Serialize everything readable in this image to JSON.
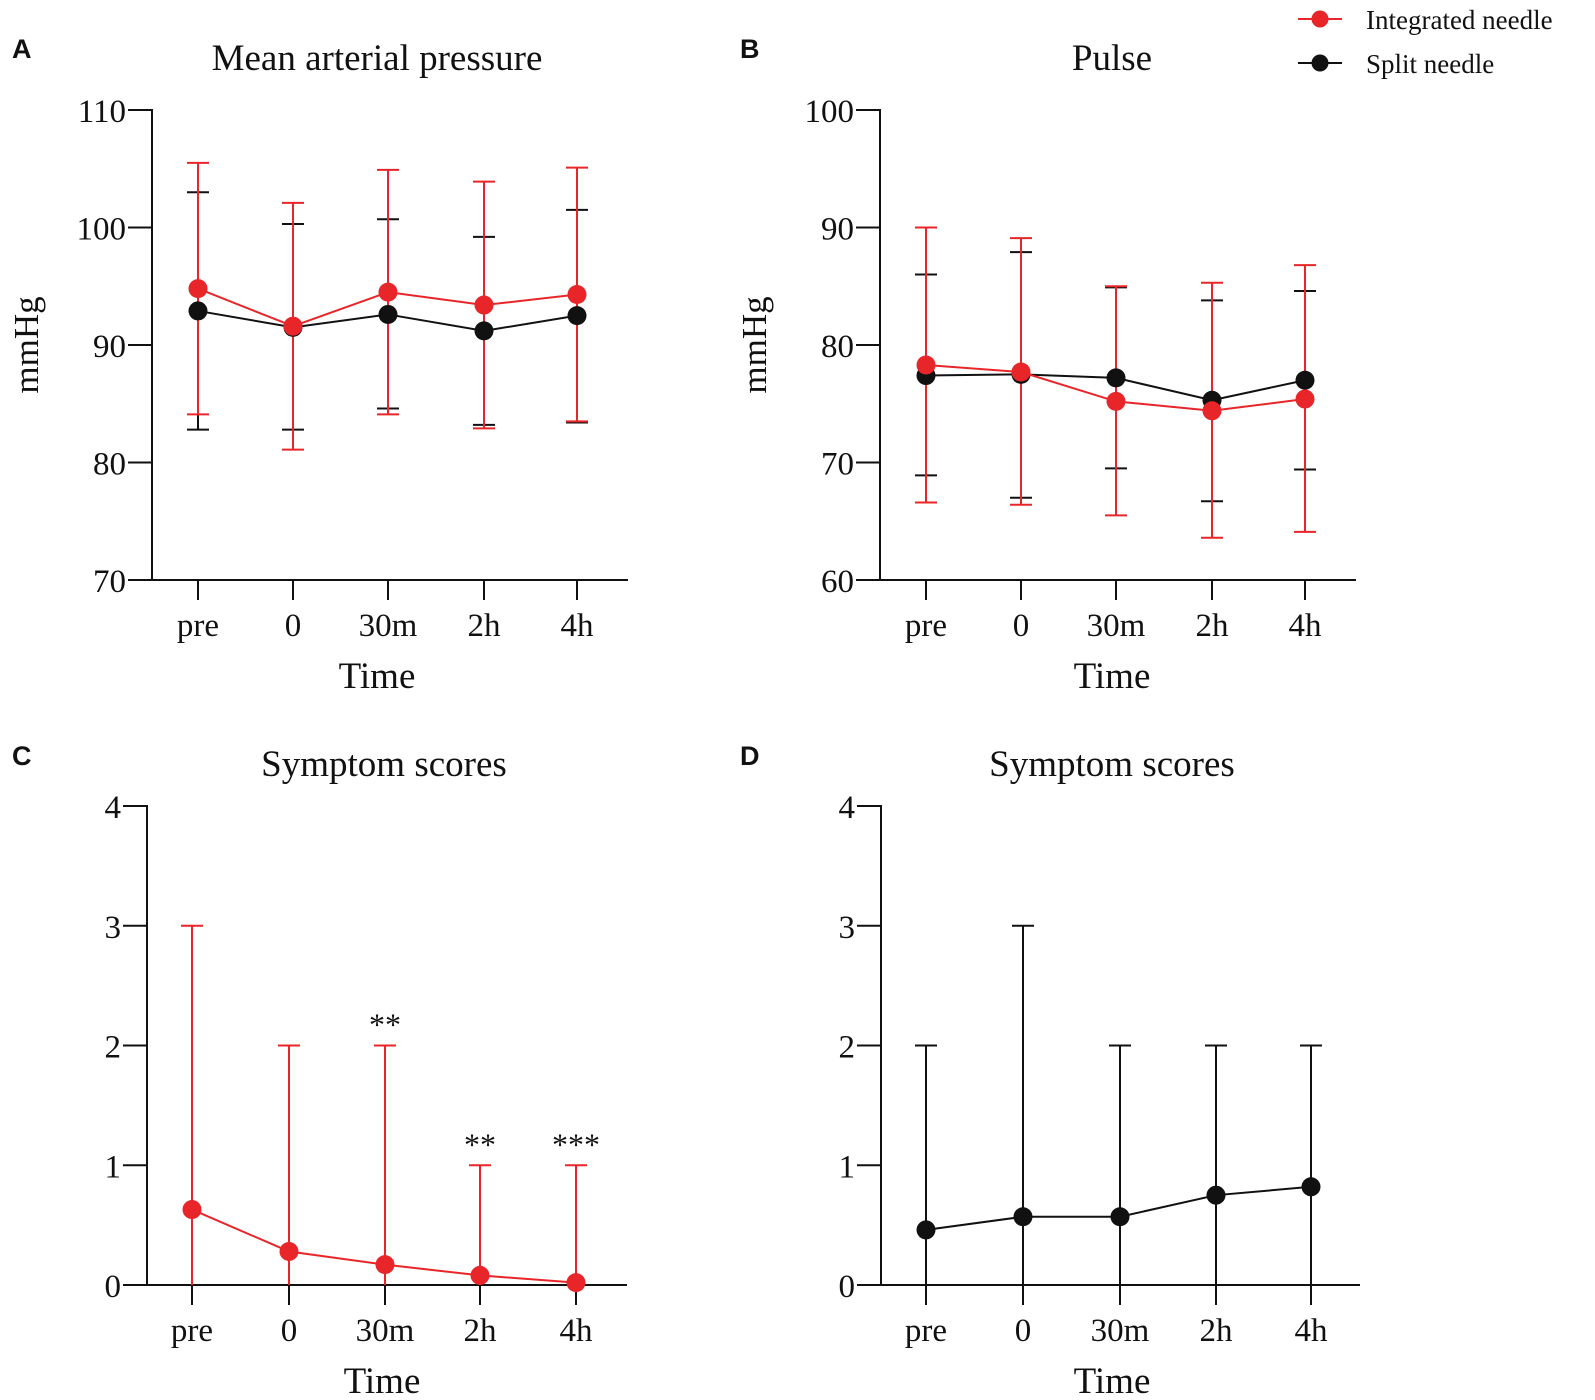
{
  "colors": {
    "integrated": "#e8262a",
    "split": "#111111",
    "axis": "#111111"
  },
  "legend": {
    "integrated_label": "Integrated needle",
    "split_label": "Split needle"
  },
  "chart_data": [
    {
      "panel": "A",
      "type": "line",
      "title": "Mean arterial pressure",
      "xlabel": "Time",
      "ylabel": "mmHg",
      "categories": [
        "pre",
        "0",
        "30m",
        "2h",
        "4h"
      ],
      "ylim": [
        70,
        110
      ],
      "yticks": [
        "70",
        "80",
        "90",
        "100",
        "110"
      ],
      "series": [
        {
          "name": "Integrated needle",
          "color": "#e8262a",
          "values": [
            94.8,
            91.6,
            94.5,
            93.4,
            94.3
          ],
          "err_low": [
            84.1,
            81.1,
            84.1,
            82.9,
            83.5
          ],
          "err_high": [
            105.5,
            102.1,
            104.9,
            103.9,
            105.1
          ]
        },
        {
          "name": "Split needle",
          "color": "#111111",
          "values": [
            92.9,
            91.5,
            92.6,
            91.2,
            92.5
          ],
          "err_low": [
            82.8,
            82.8,
            84.6,
            83.2,
            83.4
          ],
          "err_high": [
            103.0,
            100.3,
            100.7,
            99.2,
            101.5
          ]
        }
      ],
      "annotations": []
    },
    {
      "panel": "B",
      "type": "line",
      "title": "Pulse",
      "xlabel": "Time",
      "ylabel": "mmHg",
      "categories": [
        "pre",
        "0",
        "30m",
        "2h",
        "4h"
      ],
      "ylim": [
        60,
        100
      ],
      "yticks": [
        "60",
        "70",
        "80",
        "90",
        "100"
      ],
      "series": [
        {
          "name": "Integrated needle",
          "color": "#e8262a",
          "values": [
            78.3,
            77.7,
            75.2,
            74.4,
            75.4
          ],
          "err_low": [
            66.6,
            66.4,
            65.5,
            63.6,
            64.1
          ],
          "err_high": [
            90.0,
            89.1,
            85.0,
            85.3,
            86.8
          ]
        },
        {
          "name": "Split needle",
          "color": "#111111",
          "values": [
            77.4,
            77.5,
            77.2,
            75.3,
            77.0
          ],
          "err_low": [
            68.9,
            67.0,
            69.5,
            66.7,
            69.4
          ],
          "err_high": [
            86.0,
            87.9,
            84.9,
            83.8,
            84.6
          ]
        }
      ],
      "annotations": []
    },
    {
      "panel": "C",
      "type": "line",
      "title": "Symptom scores",
      "xlabel": "Time",
      "ylabel": "",
      "categories": [
        "pre",
        "0",
        "30m",
        "2h",
        "4h"
      ],
      "ylim": [
        0,
        4
      ],
      "yticks": [
        "0",
        "1",
        "2",
        "3",
        "4"
      ],
      "series": [
        {
          "name": "Integrated needle",
          "color": "#e8262a",
          "values": [
            0.63,
            0.28,
            0.17,
            0.08,
            0.02
          ],
          "err_low": [
            0,
            0,
            0,
            0,
            0
          ],
          "err_high": [
            3,
            2,
            2,
            1,
            1
          ]
        }
      ],
      "annotations": [
        {
          "category": "30m",
          "text": "**"
        },
        {
          "category": "2h",
          "text": "**"
        },
        {
          "category": "4h",
          "text": "***"
        }
      ]
    },
    {
      "panel": "D",
      "type": "line",
      "title": "Symptom scores",
      "xlabel": "Time",
      "ylabel": "",
      "categories": [
        "pre",
        "0",
        "30m",
        "2h",
        "4h"
      ],
      "ylim": [
        0,
        4
      ],
      "yticks": [
        "0",
        "1",
        "2",
        "3",
        "4"
      ],
      "series": [
        {
          "name": "Split needle",
          "color": "#111111",
          "values": [
            0.46,
            0.57,
            0.57,
            0.75,
            0.82
          ],
          "err_low": [
            0,
            0,
            0,
            0,
            0
          ],
          "err_high": [
            2,
            3,
            2,
            2,
            2
          ]
        }
      ],
      "annotations": []
    }
  ]
}
